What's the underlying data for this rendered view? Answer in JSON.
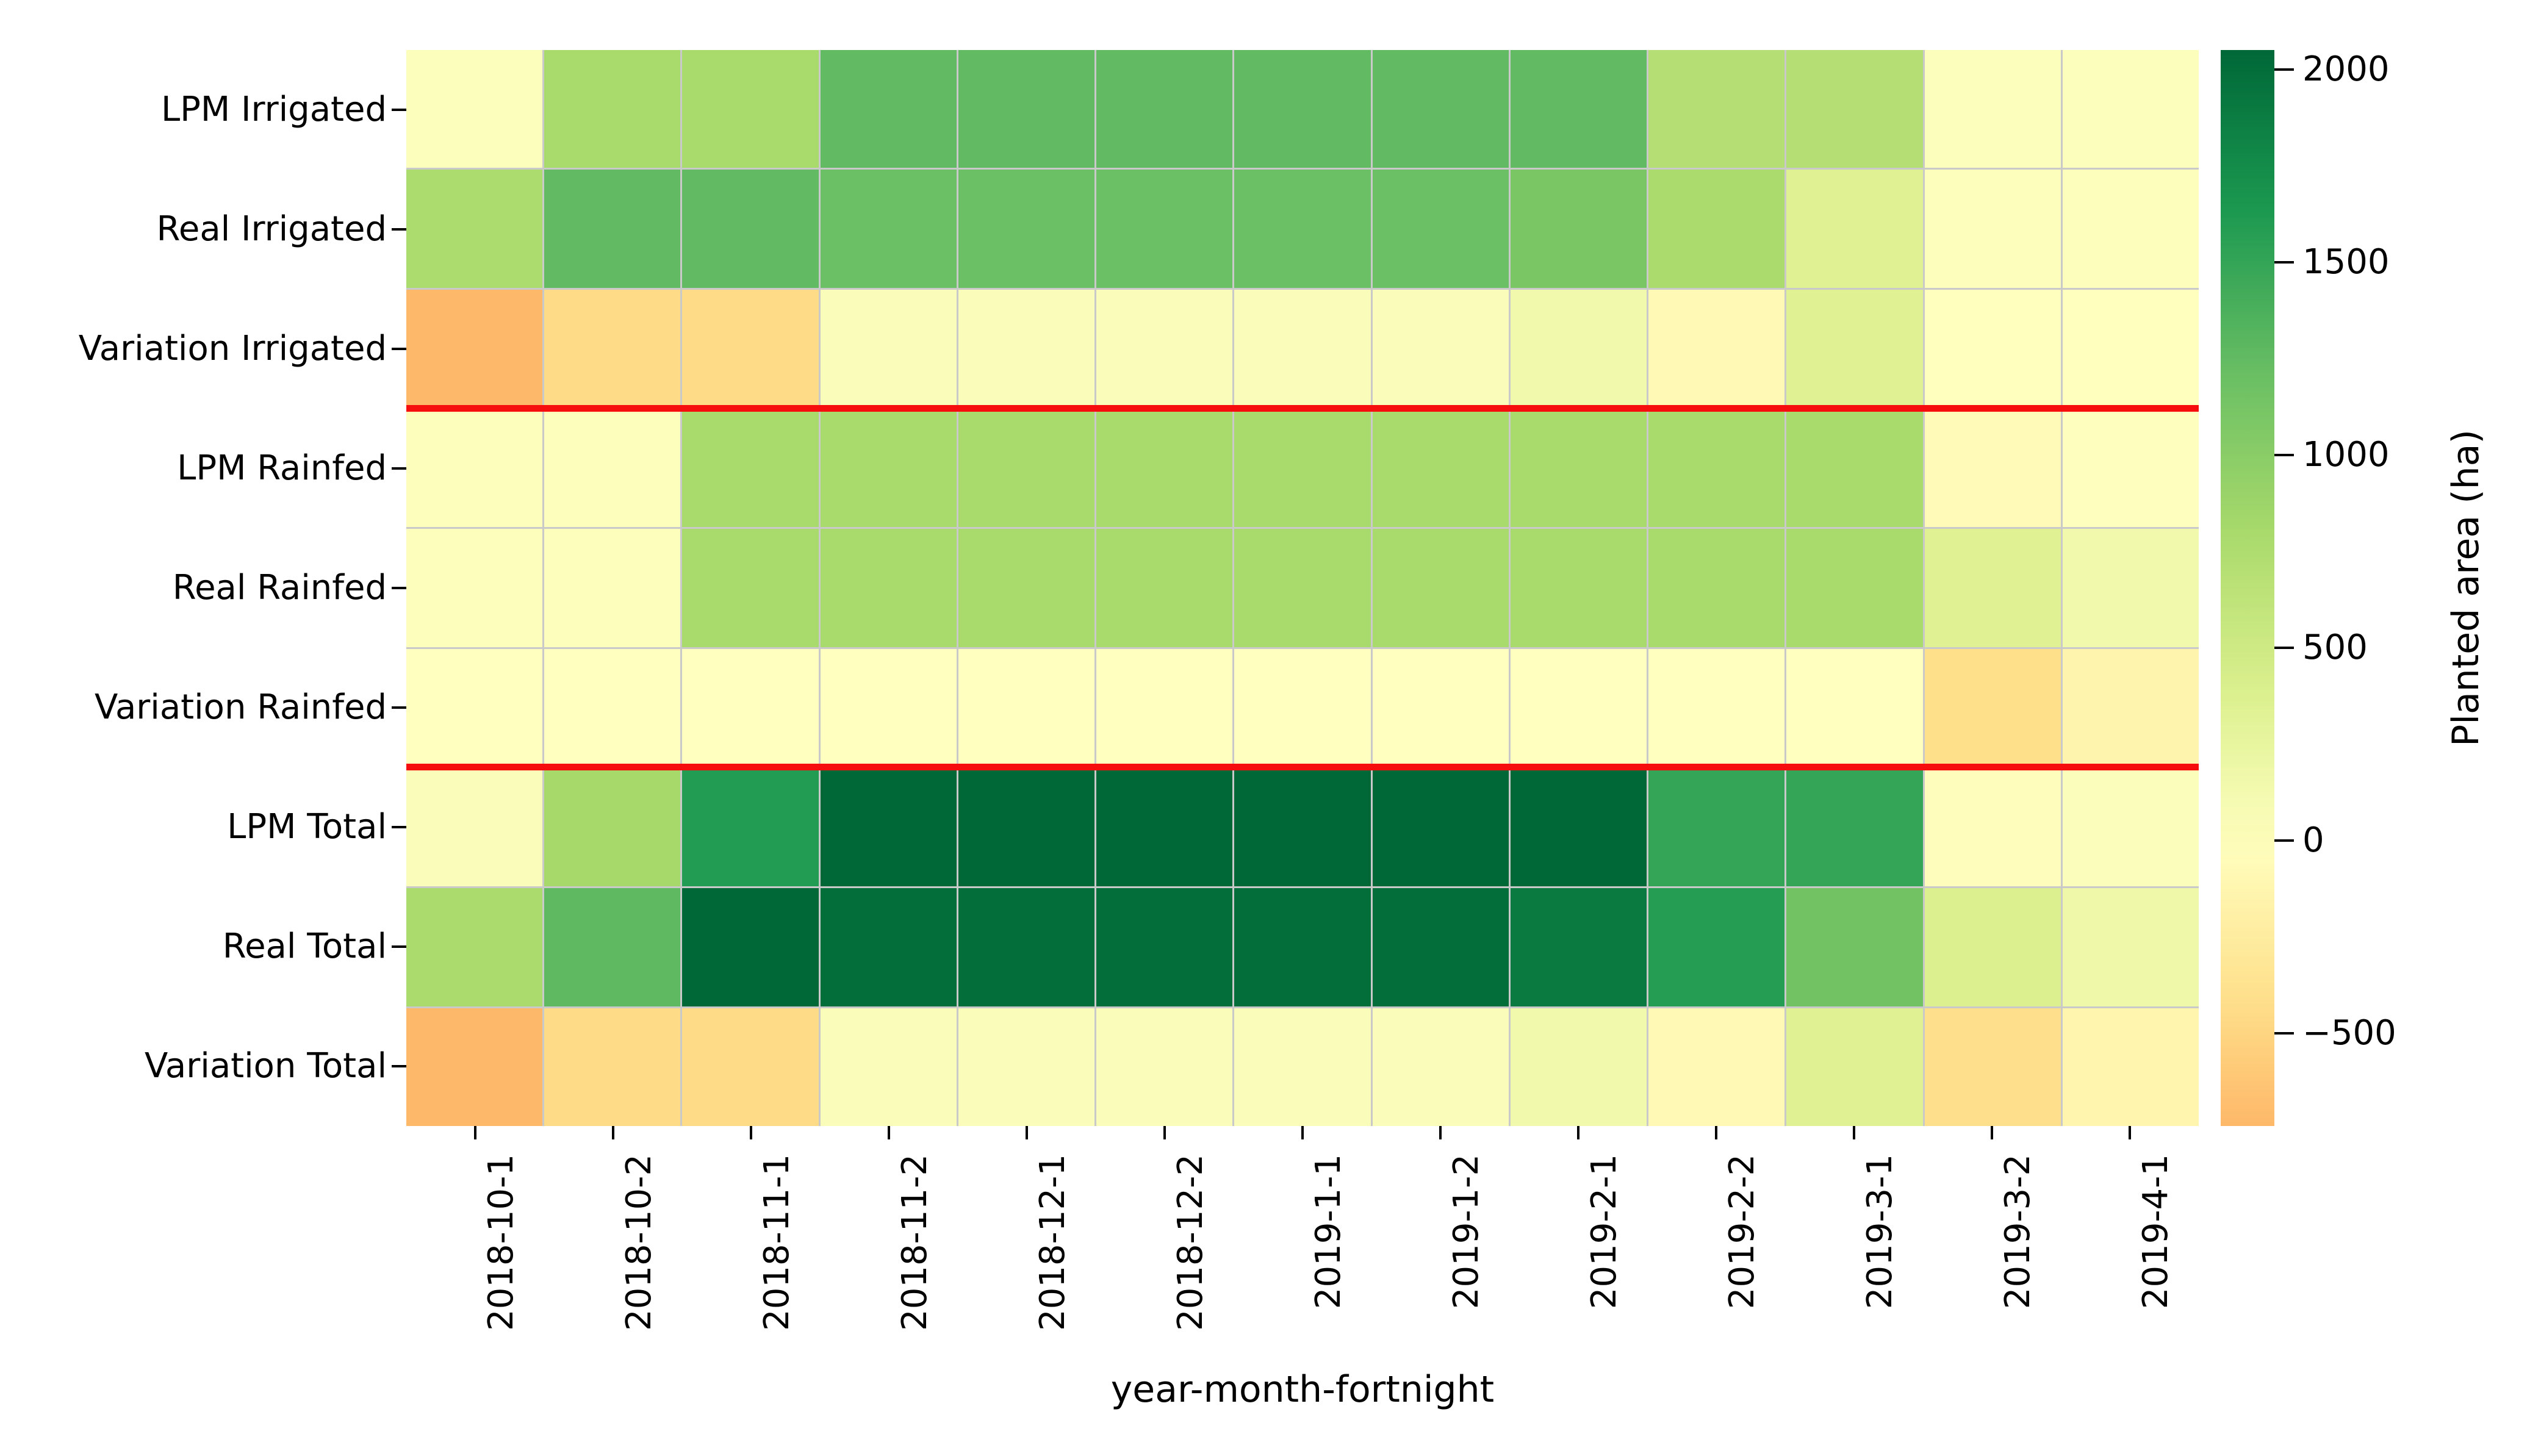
{
  "chart_data": {
    "type": "heatmap",
    "xlabel": "year-month-fortnight",
    "colorbar_label": "Planted area (ha)",
    "columns": [
      "2018-10-1",
      "2018-10-2",
      "2018-11-1",
      "2018-11-2",
      "2018-12-1",
      "2018-12-2",
      "2019-1-1",
      "2019-1-2",
      "2019-2-1",
      "2019-2-2",
      "2019-3-1",
      "2019-3-2",
      "2019-4-1"
    ],
    "rows": [
      {
        "label": "LPM Irrigated",
        "values": [
          30,
          800,
          800,
          1250,
          1250,
          1250,
          1250,
          1250,
          1250,
          700,
          700,
          30,
          30
        ]
      },
      {
        "label": "Real Irrigated",
        "values": [
          770,
          1250,
          1250,
          1200,
          1200,
          1200,
          1200,
          1200,
          1100,
          780,
          350,
          25,
          25
        ]
      },
      {
        "label": "Variation Irrigated",
        "values": [
          -740,
          -450,
          -450,
          50,
          50,
          50,
          50,
          50,
          150,
          -80,
          350,
          5,
          5
        ]
      },
      {
        "label": "LPM Rainfed",
        "values": [
          20,
          20,
          800,
          800,
          800,
          800,
          800,
          800,
          800,
          800,
          800,
          -60,
          10
        ]
      },
      {
        "label": "Real Rainfed",
        "values": [
          20,
          20,
          800,
          800,
          800,
          800,
          800,
          800,
          800,
          800,
          800,
          350,
          150
        ]
      },
      {
        "label": "Variation Rainfed",
        "values": [
          0,
          0,
          0,
          0,
          0,
          0,
          0,
          0,
          0,
          0,
          0,
          -410,
          -140
        ]
      },
      {
        "label": "LPM Total",
        "values": [
          50,
          820,
          1600,
          2050,
          2050,
          2050,
          2050,
          2050,
          2050,
          1500,
          1500,
          -30,
          40
        ]
      },
      {
        "label": "Real Total",
        "values": [
          790,
          1270,
          2050,
          2000,
          2000,
          2000,
          2000,
          2000,
          1900,
          1580,
          1150,
          375,
          175
        ]
      },
      {
        "label": "Variation Total",
        "values": [
          -740,
          -450,
          -450,
          50,
          50,
          50,
          50,
          50,
          150,
          -80,
          350,
          -405,
          -135
        ]
      }
    ],
    "colormap": "RdYlGn",
    "colormap_rgb": [
      [
        165,
        0,
        38
      ],
      [
        215,
        48,
        39
      ],
      [
        244,
        109,
        67
      ],
      [
        253,
        174,
        97
      ],
      [
        254,
        224,
        139
      ],
      [
        255,
        255,
        191
      ],
      [
        217,
        239,
        139
      ],
      [
        166,
        217,
        106
      ],
      [
        102,
        189,
        99
      ],
      [
        26,
        152,
        80
      ],
      [
        0,
        104,
        55
      ]
    ],
    "color_scale": {
      "vmin": -2050,
      "vmax": 2050,
      "center": 0,
      "bar_min": -740,
      "bar_max": 2050
    },
    "colorbar_ticks": [
      {
        "value": 2000,
        "label": "2000"
      },
      {
        "value": 1500,
        "label": "1500"
      },
      {
        "value": 1000,
        "label": "1000"
      },
      {
        "value": 500,
        "label": "500"
      },
      {
        "value": 0,
        "label": "0"
      },
      {
        "value": -500,
        "label": "−500"
      }
    ],
    "separator_after_rows": [
      2,
      5
    ],
    "separator_color": "#f60d0d",
    "grid_color": "#c9c9c9",
    "legend_position": "right",
    "grid": true
  }
}
